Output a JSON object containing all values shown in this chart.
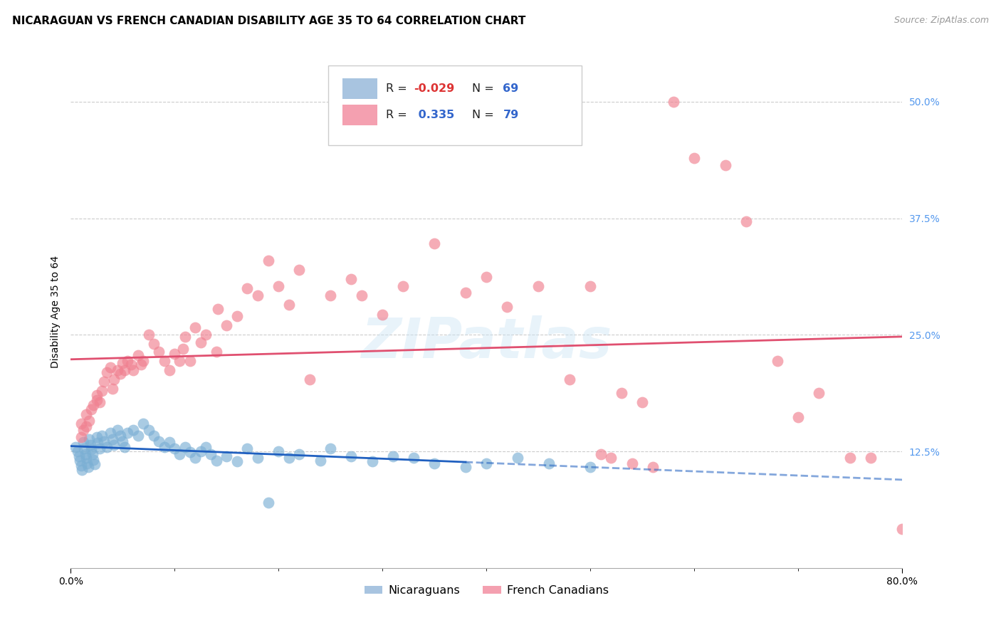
{
  "title": "NICARAGUAN VS FRENCH CANADIAN DISABILITY AGE 35 TO 64 CORRELATION CHART",
  "source": "Source: ZipAtlas.com",
  "ylabel": "Disability Age 35 to 64",
  "yticks": [
    "12.5%",
    "25.0%",
    "37.5%",
    "50.0%"
  ],
  "ytick_vals": [
    0.125,
    0.25,
    0.375,
    0.5
  ],
  "xlim": [
    0.0,
    0.8
  ],
  "ylim": [
    0.0,
    0.55
  ],
  "bottom_legend": [
    "Nicaraguans",
    "French Canadians"
  ],
  "blue_color": "#7bafd4",
  "pink_color": "#f08090",
  "blue_line_color": "#2060c0",
  "pink_line_color": "#e05070",
  "nicaraguan_x": [
    0.005,
    0.007,
    0.008,
    0.009,
    0.01,
    0.011,
    0.012,
    0.013,
    0.014,
    0.015,
    0.016,
    0.017,
    0.018,
    0.019,
    0.02,
    0.021,
    0.022,
    0.023,
    0.025,
    0.026,
    0.028,
    0.03,
    0.032,
    0.035,
    0.038,
    0.04,
    0.042,
    0.045,
    0.048,
    0.05,
    0.052,
    0.055,
    0.06,
    0.065,
    0.07,
    0.075,
    0.08,
    0.085,
    0.09,
    0.095,
    0.1,
    0.105,
    0.11,
    0.115,
    0.12,
    0.125,
    0.13,
    0.135,
    0.14,
    0.15,
    0.16,
    0.17,
    0.18,
    0.19,
    0.2,
    0.21,
    0.22,
    0.24,
    0.25,
    0.27,
    0.29,
    0.31,
    0.33,
    0.35,
    0.38,
    0.4,
    0.43,
    0.46,
    0.5
  ],
  "nicaraguan_y": [
    0.13,
    0.125,
    0.12,
    0.115,
    0.11,
    0.105,
    0.135,
    0.128,
    0.122,
    0.118,
    0.112,
    0.108,
    0.138,
    0.132,
    0.127,
    0.122,
    0.116,
    0.111,
    0.14,
    0.134,
    0.128,
    0.142,
    0.136,
    0.13,
    0.145,
    0.138,
    0.132,
    0.148,
    0.142,
    0.136,
    0.13,
    0.145,
    0.148,
    0.142,
    0.155,
    0.148,
    0.142,
    0.136,
    0.13,
    0.135,
    0.128,
    0.122,
    0.13,
    0.124,
    0.118,
    0.125,
    0.13,
    0.122,
    0.115,
    0.12,
    0.114,
    0.128,
    0.118,
    0.07,
    0.125,
    0.118,
    0.122,
    0.115,
    0.128,
    0.12,
    0.114,
    0.12,
    0.118,
    0.112,
    0.108,
    0.112,
    0.118,
    0.112,
    0.108
  ],
  "french_x": [
    0.01,
    0.01,
    0.012,
    0.015,
    0.015,
    0.018,
    0.02,
    0.022,
    0.025,
    0.025,
    0.028,
    0.03,
    0.032,
    0.035,
    0.038,
    0.04,
    0.042,
    0.045,
    0.048,
    0.05,
    0.052,
    0.055,
    0.058,
    0.06,
    0.065,
    0.068,
    0.07,
    0.075,
    0.08,
    0.085,
    0.09,
    0.095,
    0.1,
    0.105,
    0.108,
    0.11,
    0.115,
    0.12,
    0.125,
    0.13,
    0.14,
    0.142,
    0.15,
    0.16,
    0.17,
    0.18,
    0.19,
    0.2,
    0.21,
    0.22,
    0.23,
    0.25,
    0.27,
    0.28,
    0.3,
    0.32,
    0.35,
    0.38,
    0.4,
    0.42,
    0.45,
    0.48,
    0.5,
    0.53,
    0.55,
    0.58,
    0.6,
    0.63,
    0.65,
    0.68,
    0.7,
    0.72,
    0.75,
    0.77,
    0.8,
    0.51,
    0.52,
    0.54,
    0.56
  ],
  "french_y": [
    0.14,
    0.155,
    0.148,
    0.152,
    0.165,
    0.158,
    0.17,
    0.175,
    0.18,
    0.185,
    0.178,
    0.19,
    0.2,
    0.21,
    0.215,
    0.192,
    0.202,
    0.212,
    0.208,
    0.22,
    0.212,
    0.222,
    0.218,
    0.212,
    0.228,
    0.218,
    0.222,
    0.25,
    0.24,
    0.232,
    0.222,
    0.212,
    0.23,
    0.222,
    0.235,
    0.248,
    0.222,
    0.258,
    0.242,
    0.25,
    0.232,
    0.278,
    0.26,
    0.27,
    0.3,
    0.292,
    0.33,
    0.302,
    0.282,
    0.32,
    0.202,
    0.292,
    0.31,
    0.292,
    0.272,
    0.302,
    0.348,
    0.295,
    0.312,
    0.28,
    0.302,
    0.202,
    0.302,
    0.188,
    0.178,
    0.5,
    0.44,
    0.432,
    0.372,
    0.222,
    0.162,
    0.188,
    0.118,
    0.118,
    0.042,
    0.122,
    0.118,
    0.112,
    0.108
  ],
  "title_fontsize": 11,
  "axis_label_fontsize": 10,
  "tick_fontsize": 10,
  "background_color": "#ffffff",
  "grid_color": "#cccccc"
}
